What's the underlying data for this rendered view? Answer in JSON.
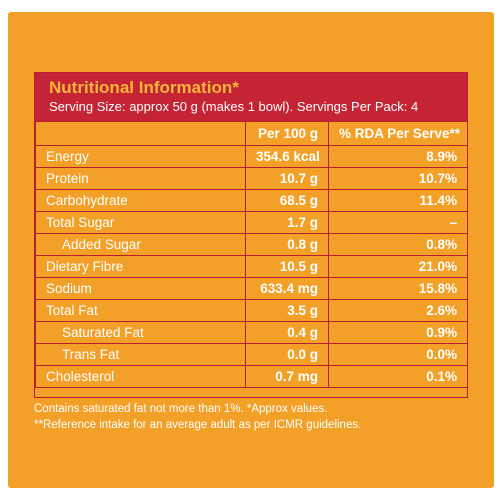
{
  "label": {
    "title": "Nutritional Information*",
    "serving_info": "Serving Size: approx 50 g (makes 1 bowl). Servings Per Pack: 4",
    "columns": [
      "",
      "Per 100 g",
      "% RDA Per Serve**"
    ],
    "rows": [
      {
        "name": "Energy",
        "per100g": "354.6 kcal",
        "rda": "8.9%"
      },
      {
        "name": "Protein",
        "per100g": "10.7 g",
        "rda": "10.7%"
      },
      {
        "name": "Carbohydrate",
        "per100g": "68.5 g",
        "rda": "11.4%"
      },
      {
        "name": "Total Sugar",
        "per100g": "1.7 g",
        "rda": "–"
      },
      {
        "name": "Added Sugar",
        "per100g": "0.8 g",
        "rda": "0.8%"
      },
      {
        "name": "Dietary Fibre",
        "per100g": "10.5 g",
        "rda": "21.0%"
      },
      {
        "name": "Sodium",
        "per100g": "633.4 mg",
        "rda": "15.8%"
      },
      {
        "name": "Total Fat",
        "per100g": "3.5 g",
        "rda": "2.6%"
      },
      {
        "name": "Saturated Fat",
        "per100g": "0.4 g",
        "rda": "0.9%"
      },
      {
        "name": "Trans Fat",
        "per100g": "0.0 g",
        "rda": "0.0%"
      },
      {
        "name": "Cholesterol",
        "per100g": "0.7 mg",
        "rda": "0.1%"
      }
    ],
    "footnote_1": "Contains saturated fat not more than 1%. *Approx values.",
    "footnote_2": "**Reference intake for an average adult as per ICMR guidelines."
  },
  "colors": {
    "background": "#f2a027",
    "header": "#c42434",
    "title_text": "#f6b63a",
    "border": "#b51f2e"
  }
}
